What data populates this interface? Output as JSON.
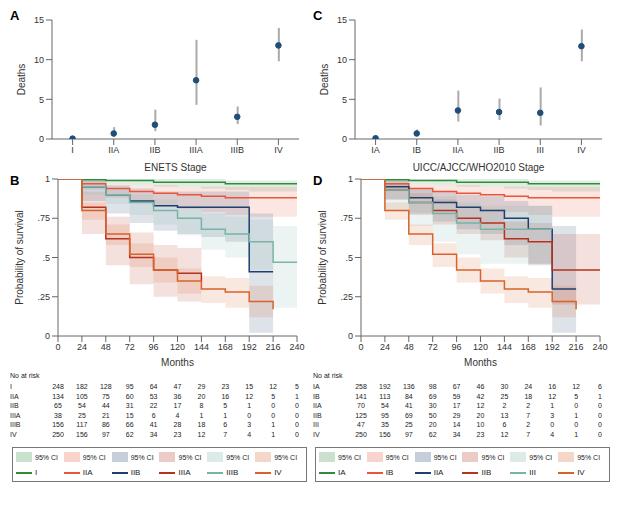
{
  "chart_data": [
    {
      "panel": "A",
      "type": "scatter",
      "x_label": "ENETS Stage",
      "y_label": "Deaths",
      "categories": [
        "I",
        "IIA",
        "IIB",
        "IIIA",
        "IIIB",
        "IV"
      ],
      "values": [
        0.05,
        0.7,
        1.8,
        7.4,
        2.8,
        11.8
      ],
      "error_low": [
        0,
        0.3,
        1.0,
        4.3,
        1.9,
        9.8
      ],
      "error_high": [
        0.1,
        1.5,
        3.7,
        12.5,
        4.1,
        14.0
      ],
      "color": "#1f4e79",
      "marker": "circle",
      "ylim": [
        0,
        15
      ],
      "yticks": [
        0,
        5,
        10,
        15
      ]
    },
    {
      "panel": "B",
      "type": "line",
      "line_style": "step",
      "x_label": "Months",
      "y_label": "Probability of survival",
      "ci_label": "95% CI",
      "at_risk_title": "No at risk",
      "x": [
        0,
        24,
        48,
        72,
        96,
        120,
        144,
        168,
        192,
        216,
        240
      ],
      "xlim": [
        0,
        240
      ],
      "xticks": [
        0,
        24,
        48,
        72,
        96,
        120,
        144,
        168,
        192,
        216,
        240
      ],
      "ylim": [
        0,
        1
      ],
      "yticks": [
        0,
        {
          "value": 0.25,
          "label": ".25"
        },
        {
          "value": 0.5,
          "label": ".5"
        },
        {
          "value": 0.75,
          "label": ".75"
        },
        1
      ],
      "series": [
        {
          "name": "I",
          "color": "#2e8b3e",
          "values": [
            1,
            0.995,
            0.99,
            0.99,
            0.98,
            0.98,
            0.98,
            0.97,
            0.97,
            0.97,
            0.97
          ],
          "ci_low": [
            1,
            0.98,
            0.97,
            0.96,
            0.95,
            0.95,
            0.94,
            0.93,
            0.92,
            0.92,
            0.92
          ],
          "ci_high": [
            1,
            1,
            1,
            1,
            1,
            1,
            1,
            0.99,
            0.99,
            0.99,
            0.99
          ],
          "at_risk": [
            248,
            182,
            128,
            95,
            64,
            47,
            29,
            23,
            15,
            12,
            5
          ]
        },
        {
          "name": "IIA",
          "color": "#e8553a",
          "values": [
            1,
            0.97,
            0.94,
            0.92,
            0.91,
            0.9,
            0.89,
            0.88,
            0.88,
            0.88,
            0.88
          ],
          "ci_low": [
            1,
            0.93,
            0.88,
            0.85,
            0.83,
            0.81,
            0.79,
            0.77,
            0.76,
            0.76,
            0.76
          ],
          "ci_high": [
            1,
            0.99,
            0.97,
            0.96,
            0.96,
            0.95,
            0.95,
            0.95,
            0.95,
            0.95,
            0.95
          ],
          "at_risk": [
            134,
            105,
            75,
            60,
            53,
            36,
            20,
            16,
            12,
            5,
            1
          ]
        },
        {
          "name": "IIB",
          "color": "#1f3f6e",
          "values": [
            1,
            0.95,
            0.9,
            0.86,
            0.83,
            0.82,
            0.82,
            0.82,
            0.41,
            0.41,
            null
          ],
          "ci_low": [
            1,
            0.86,
            0.78,
            0.72,
            0.67,
            0.65,
            0.63,
            0.6,
            0.02,
            0.02,
            null
          ],
          "ci_high": [
            1,
            0.99,
            0.96,
            0.94,
            0.92,
            0.92,
            0.92,
            0.92,
            0.78,
            0.78,
            null
          ],
          "at_risk": [
            65,
            54,
            44,
            31,
            22,
            17,
            8,
            5,
            1,
            0,
            0
          ]
        },
        {
          "name": "IIIA",
          "color": "#b5321e",
          "values": [
            1,
            0.82,
            0.62,
            0.5,
            0.42,
            0.4,
            0.35,
            null,
            null,
            null,
            null
          ],
          "ci_low": [
            1,
            0.65,
            0.45,
            0.33,
            0.25,
            0.22,
            0.17,
            null,
            null,
            null,
            null
          ],
          "ci_high": [
            1,
            0.92,
            0.76,
            0.66,
            0.58,
            0.56,
            0.52,
            null,
            null,
            null,
            null
          ],
          "at_risk": [
            38,
            25,
            21,
            15,
            6,
            4,
            1,
            1,
            0,
            0,
            0
          ]
        },
        {
          "name": "IIIB",
          "color": "#7ab3a6",
          "values": [
            1,
            0.95,
            0.9,
            0.85,
            0.8,
            0.75,
            0.68,
            0.65,
            0.6,
            0.47,
            0.47
          ],
          "ci_low": [
            1,
            0.9,
            0.84,
            0.77,
            0.71,
            0.64,
            0.55,
            0.5,
            0.42,
            0.18,
            0.18
          ],
          "ci_high": [
            1,
            0.98,
            0.94,
            0.9,
            0.87,
            0.83,
            0.78,
            0.76,
            0.74,
            0.7,
            0.7
          ],
          "at_risk": [
            156,
            117,
            86,
            66,
            41,
            28,
            18,
            6,
            3,
            1,
            0
          ]
        },
        {
          "name": "IV",
          "color": "#d9622b",
          "values": [
            1,
            0.8,
            0.65,
            0.52,
            0.42,
            0.35,
            0.3,
            0.28,
            0.22,
            0.17,
            null
          ],
          "ci_low": [
            1,
            0.74,
            0.58,
            0.44,
            0.34,
            0.27,
            0.21,
            0.18,
            0.12,
            0.07,
            null
          ],
          "ci_high": [
            1,
            0.85,
            0.71,
            0.59,
            0.5,
            0.43,
            0.38,
            0.37,
            0.32,
            0.3,
            null
          ],
          "at_risk": [
            250,
            156,
            97,
            62,
            34,
            23,
            12,
            7,
            4,
            1,
            0
          ]
        }
      ]
    },
    {
      "panel": "C",
      "type": "scatter",
      "x_label": "UICC/AJCC/WHO2010 Stage",
      "y_label": "Deaths",
      "categories": [
        "IA",
        "IB",
        "IIA",
        "IIB",
        "III",
        "IV"
      ],
      "values": [
        0.1,
        0.7,
        3.6,
        3.4,
        3.3,
        11.7
      ],
      "error_low": [
        0,
        0.4,
        2.2,
        2.4,
        1.7,
        9.8
      ],
      "error_high": [
        0.2,
        1.2,
        6.1,
        5.1,
        6.5,
        13.8
      ],
      "color": "#1f4e79",
      "marker": "circle",
      "ylim": [
        0,
        15
      ],
      "yticks": [
        0,
        5,
        10,
        15
      ]
    },
    {
      "panel": "D",
      "type": "line",
      "line_style": "step",
      "x_label": "Months",
      "y_label": "Probability of survival",
      "ci_label": "95% CI",
      "at_risk_title": "No at risk",
      "x": [
        0,
        24,
        48,
        72,
        96,
        120,
        144,
        168,
        192,
        216,
        240
      ],
      "xlim": [
        0,
        240
      ],
      "xticks": [
        0,
        24,
        48,
        72,
        96,
        120,
        144,
        168,
        192,
        216,
        240
      ],
      "ylim": [
        0,
        1
      ],
      "yticks": [
        0,
        {
          "value": 0.25,
          "label": ".25"
        },
        {
          "value": 0.5,
          "label": ".5"
        },
        {
          "value": 0.75,
          "label": ".75"
        },
        1
      ],
      "series": [
        {
          "name": "IA",
          "color": "#2e8b3e",
          "values": [
            1,
            0.995,
            0.99,
            0.99,
            0.98,
            0.98,
            0.98,
            0.97,
            0.97,
            0.97,
            0.97
          ],
          "ci_low": [
            1,
            0.98,
            0.97,
            0.96,
            0.95,
            0.95,
            0.94,
            0.93,
            0.92,
            0.92,
            0.92
          ],
          "ci_high": [
            1,
            1,
            1,
            1,
            1,
            1,
            1,
            0.99,
            0.99,
            0.99,
            0.99
          ],
          "at_risk": [
            258,
            192,
            136,
            98,
            67,
            46,
            30,
            24,
            16,
            12,
            6
          ]
        },
        {
          "name": "IB",
          "color": "#e8553a",
          "values": [
            1,
            0.97,
            0.94,
            0.92,
            0.91,
            0.9,
            0.89,
            0.88,
            0.88,
            0.88,
            0.88
          ],
          "ci_low": [
            1,
            0.93,
            0.88,
            0.85,
            0.83,
            0.81,
            0.79,
            0.77,
            0.76,
            0.76,
            0.76
          ],
          "ci_high": [
            1,
            0.99,
            0.97,
            0.96,
            0.96,
            0.95,
            0.95,
            0.95,
            0.95,
            0.95,
            0.95
          ],
          "at_risk": [
            141,
            113,
            84,
            69,
            59,
            42,
            25,
            18,
            12,
            5,
            1
          ]
        },
        {
          "name": "IIA",
          "color": "#1f3f6e",
          "values": [
            1,
            0.95,
            0.88,
            0.85,
            0.82,
            0.8,
            0.75,
            0.68,
            0.3,
            0.3,
            null
          ],
          "ci_low": [
            1,
            0.87,
            0.78,
            0.73,
            0.68,
            0.65,
            0.58,
            0.45,
            0.02,
            0.02,
            null
          ],
          "ci_high": [
            1,
            0.99,
            0.94,
            0.92,
            0.9,
            0.89,
            0.86,
            0.83,
            0.7,
            0.7,
            null
          ],
          "at_risk": [
            70,
            54,
            41,
            30,
            17,
            12,
            2,
            2,
            1,
            0,
            0
          ]
        },
        {
          "name": "IIB",
          "color": "#b5321e",
          "values": [
            1,
            0.93,
            0.85,
            0.8,
            0.75,
            0.72,
            0.62,
            0.6,
            0.42,
            0.42,
            0.42
          ],
          "ci_low": [
            1,
            0.87,
            0.77,
            0.71,
            0.65,
            0.61,
            0.5,
            0.46,
            0.2,
            0.2,
            0.2
          ],
          "ci_high": [
            1,
            0.97,
            0.91,
            0.87,
            0.83,
            0.81,
            0.73,
            0.72,
            0.65,
            0.65,
            0.65
          ],
          "at_risk": [
            125,
            95,
            69,
            50,
            29,
            20,
            13,
            7,
            3,
            1,
            0
          ]
        },
        {
          "name": "III",
          "color": "#7ab3a6",
          "values": [
            1,
            0.93,
            0.85,
            0.78,
            0.72,
            0.68,
            0.68,
            0.68,
            0.68,
            null,
            null
          ],
          "ci_low": [
            1,
            0.8,
            0.7,
            0.6,
            0.52,
            0.46,
            0.46,
            0.46,
            0.46,
            null,
            null
          ],
          "ci_high": [
            1,
            0.98,
            0.93,
            0.89,
            0.85,
            0.83,
            0.83,
            0.83,
            0.83,
            null,
            null
          ],
          "at_risk": [
            47,
            35,
            25,
            20,
            14,
            10,
            6,
            2,
            0,
            0,
            0
          ]
        },
        {
          "name": "IV",
          "color": "#d9622b",
          "values": [
            1,
            0.8,
            0.65,
            0.52,
            0.42,
            0.35,
            0.3,
            0.28,
            0.22,
            0.17,
            null
          ],
          "ci_low": [
            1,
            0.74,
            0.58,
            0.44,
            0.34,
            0.27,
            0.21,
            0.18,
            0.12,
            0.07,
            null
          ],
          "ci_high": [
            1,
            0.85,
            0.71,
            0.59,
            0.5,
            0.43,
            0.38,
            0.37,
            0.32,
            0.3,
            null
          ],
          "at_risk": [
            250,
            156,
            97,
            62,
            34,
            23,
            12,
            7,
            4,
            1,
            0
          ]
        }
      ]
    }
  ]
}
